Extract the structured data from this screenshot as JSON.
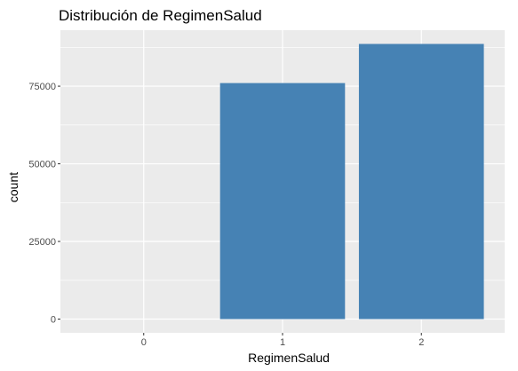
{
  "chart_data": {
    "type": "bar",
    "title": "Distribución de RegimenSalud",
    "xlabel": "RegimenSalud",
    "ylabel": "count",
    "categories": [
      "0",
      "1",
      "2"
    ],
    "values": [
      0,
      76000,
      88600
    ],
    "ylim": [
      0,
      90000
    ],
    "yticks": [
      0,
      25000,
      50000,
      75000
    ],
    "ytick_labels": [
      "0",
      "25000",
      "50000",
      "75000"
    ],
    "grid": true,
    "bar_color": "#4682B4",
    "panel_background": "#EBEBEB",
    "grid_color": "#FFFFFF"
  }
}
